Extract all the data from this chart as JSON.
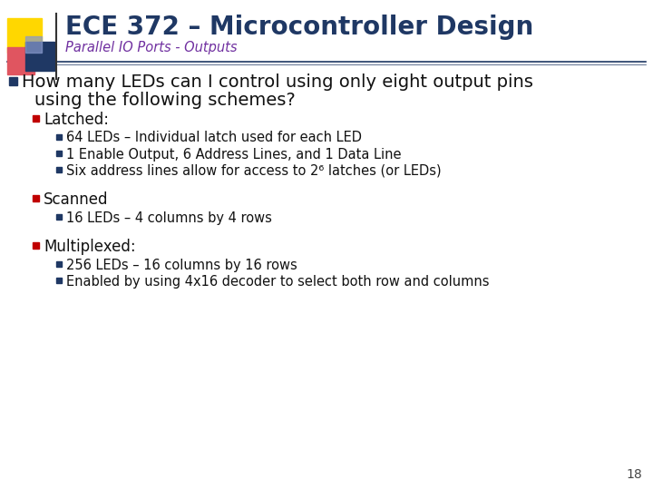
{
  "title": "ECE 372 – Microcontroller Design",
  "subtitle": "Parallel IO Ports - Outputs",
  "title_color": "#1F3864",
  "subtitle_color": "#7030A0",
  "bg_color": "#FFFFFF",
  "slide_number": "18",
  "main_bullet_color": "#1F3864",
  "l1_bullet_color": "#C00000",
  "l2_bullet_color": "#1F3864",
  "text_color": "#111111",
  "accent_line_color": "#1F3864",
  "header_yellow": "#FFD700",
  "header_red": "#E05560",
  "header_blue": "#1F3864",
  "main_bullet_line1": "How many LEDs can I control using only eight output pins",
  "main_bullet_line2": "using the following schemes?",
  "content": [
    {
      "text": "Latched:",
      "children": [
        "64 LEDs – Individual latch used for each LED",
        "1 Enable Output, 6 Address Lines, and 1 Data Line",
        "Six address lines allow for access to 2⁶ latches (or LEDs)"
      ]
    },
    {
      "text": "Scanned",
      "children": [
        "16 LEDs – 4 columns by 4 rows"
      ]
    },
    {
      "text": "Multiplexed:",
      "children": [
        "256 LEDs – 16 columns by 16 rows",
        "Enabled by using 4x16 decoder to select both row and columns"
      ]
    }
  ]
}
